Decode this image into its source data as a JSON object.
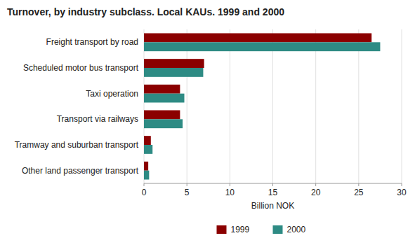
{
  "chart_data": {
    "type": "bar",
    "orientation": "horizontal",
    "title": "Turnover, by industry subclass. Local KAUs. 1999 and 2000",
    "categories": [
      "Freight transport by road",
      "Scheduled motor bus transport",
      "Taxi operation",
      "Transport via railways",
      "Tramway and suburban transport",
      "Other land passenger transport"
    ],
    "series": [
      {
        "name": "1999",
        "color": "#8B0000",
        "values": [
          26.5,
          7.0,
          4.2,
          4.2,
          0.8,
          0.5
        ]
      },
      {
        "name": "2000",
        "color": "#2E8B84",
        "values": [
          27.5,
          6.9,
          4.7,
          4.5,
          1.0,
          0.6
        ]
      }
    ],
    "xlabel": "Billion NOK",
    "xlim": [
      0,
      30
    ],
    "xticks": [
      0,
      5,
      10,
      15,
      20,
      25,
      30
    ],
    "grid": true,
    "legend": "bottom"
  }
}
